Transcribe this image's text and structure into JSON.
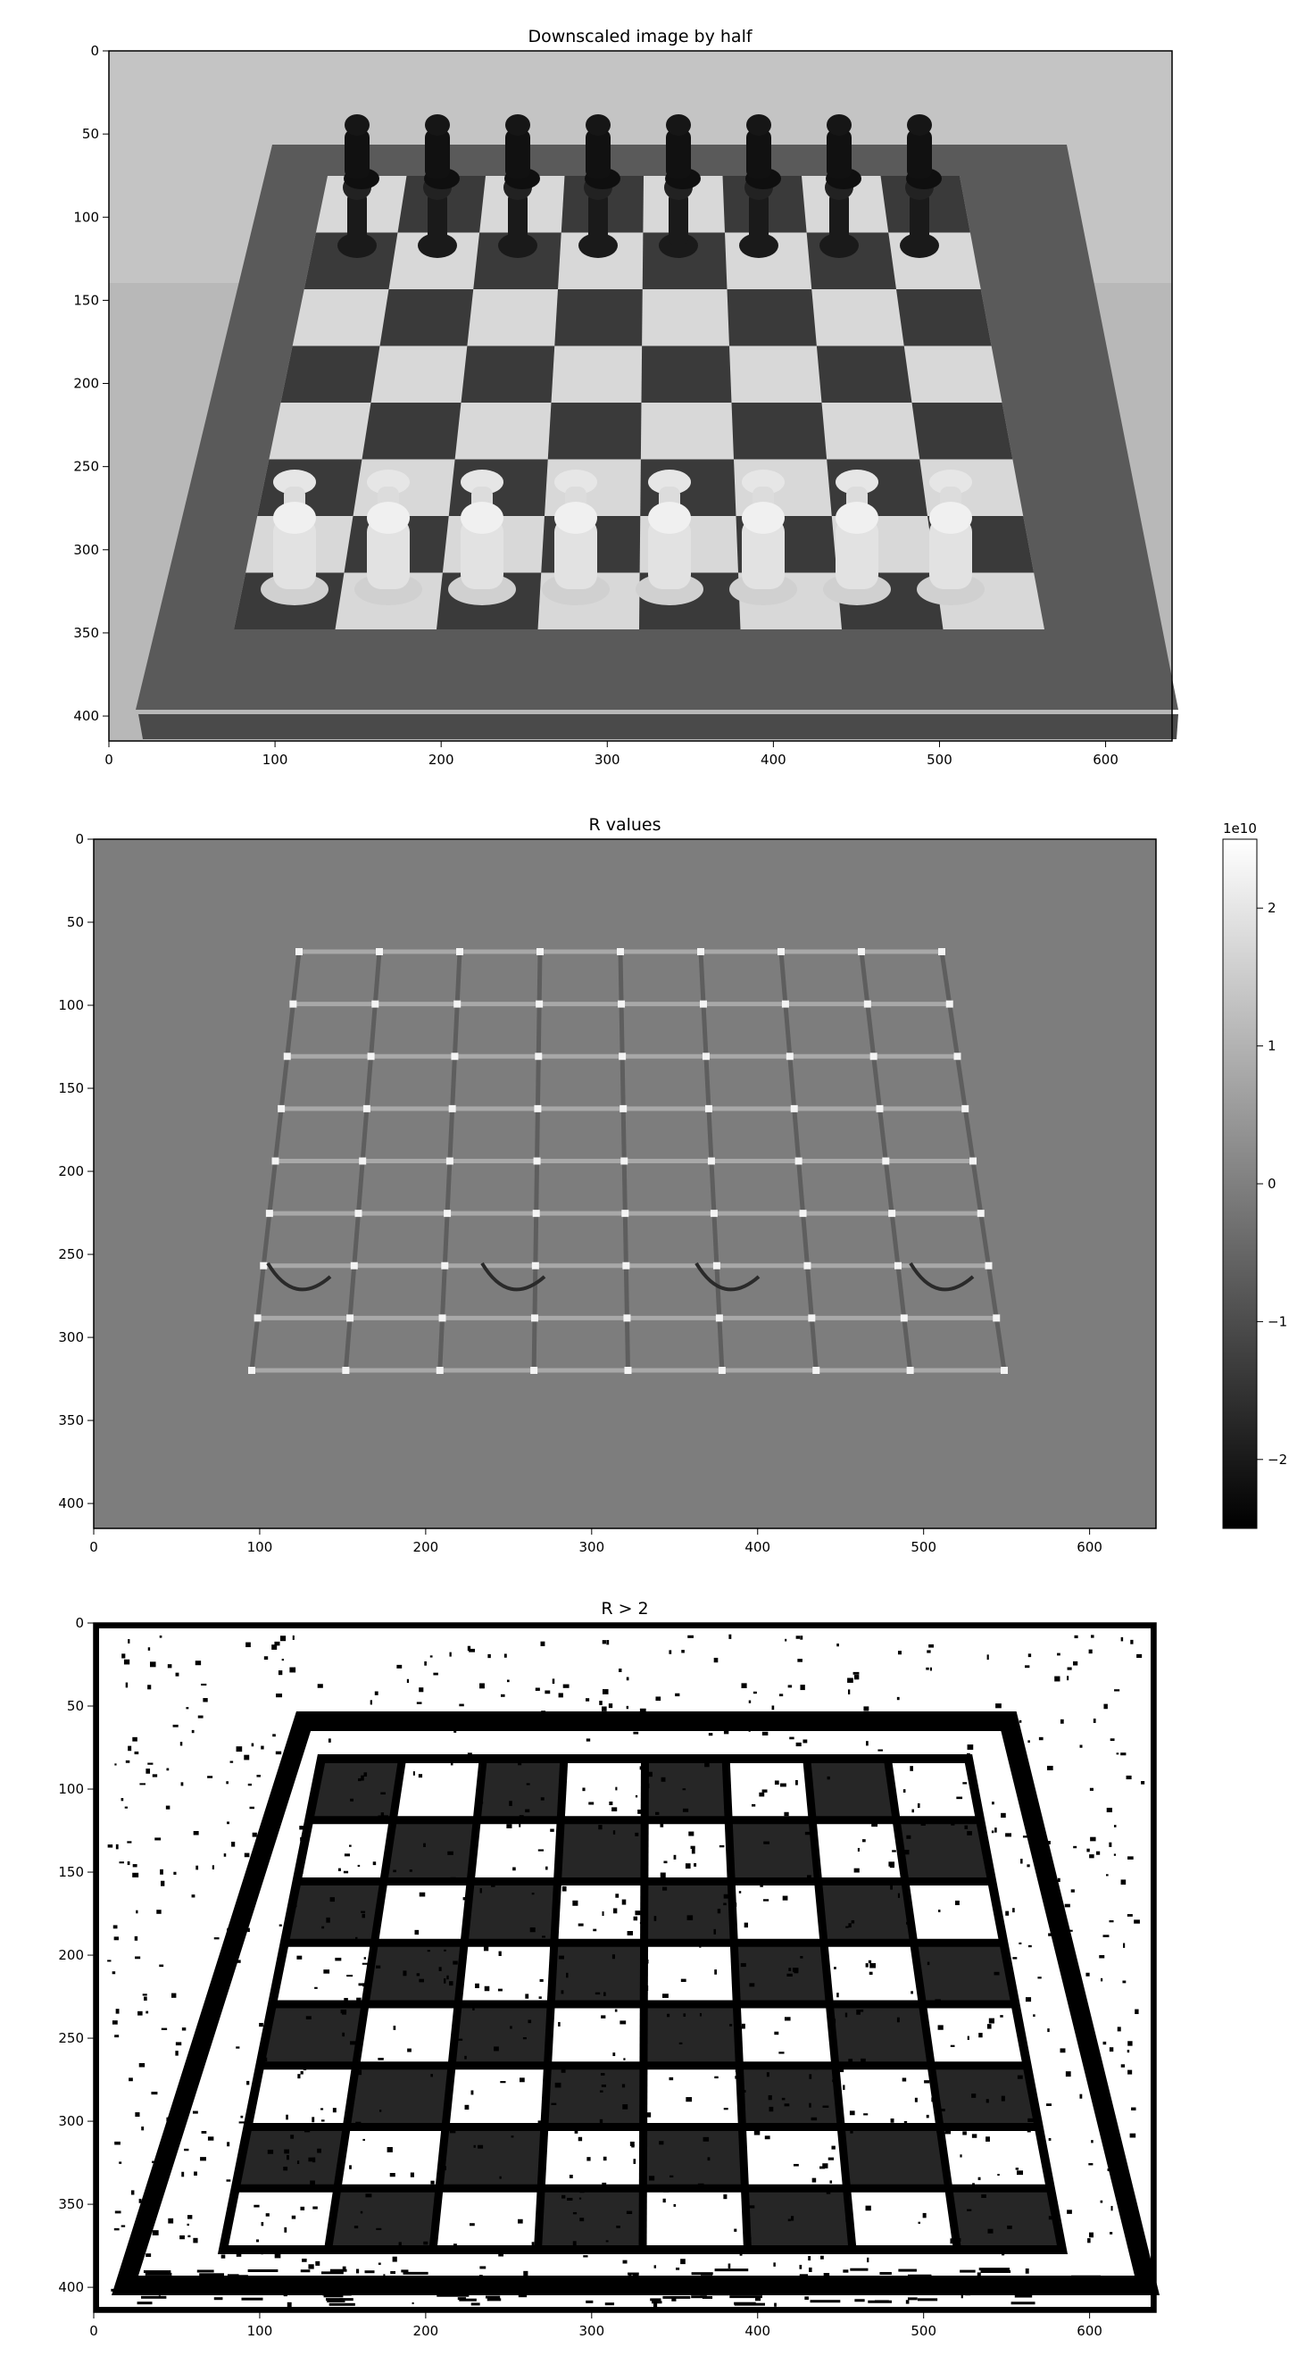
{
  "panels": [
    {
      "title": "Downscaled image by half",
      "xticks": [
        "0",
        "100",
        "200",
        "300",
        "400",
        "500",
        "600"
      ],
      "yticks": [
        "0",
        "50",
        "100",
        "150",
        "200",
        "250",
        "300",
        "350",
        "400"
      ],
      "xlim": [
        0,
        640
      ],
      "ylim": [
        0,
        415
      ]
    },
    {
      "title": "R values",
      "xticks": [
        "0",
        "100",
        "200",
        "300",
        "400",
        "500",
        "600"
      ],
      "yticks": [
        "0",
        "50",
        "100",
        "150",
        "200",
        "250",
        "300",
        "350",
        "400"
      ],
      "xlim": [
        0,
        640
      ],
      "ylim": [
        0,
        415
      ],
      "colorbar": {
        "exponent": "1e10",
        "ticks": [
          "2",
          "1",
          "0",
          "−1",
          "−2"
        ],
        "values": [
          2,
          1,
          0,
          -1,
          -2
        ],
        "range": [
          -2.5,
          2.5
        ]
      }
    },
    {
      "title": "R > 2",
      "xticks": [
        "0",
        "100",
        "200",
        "300",
        "400",
        "500",
        "600"
      ],
      "yticks": [
        "0",
        "50",
        "100",
        "150",
        "200",
        "250",
        "300",
        "350",
        "400"
      ],
      "xlim": [
        0,
        640
      ],
      "ylim": [
        0,
        415
      ]
    }
  ]
}
